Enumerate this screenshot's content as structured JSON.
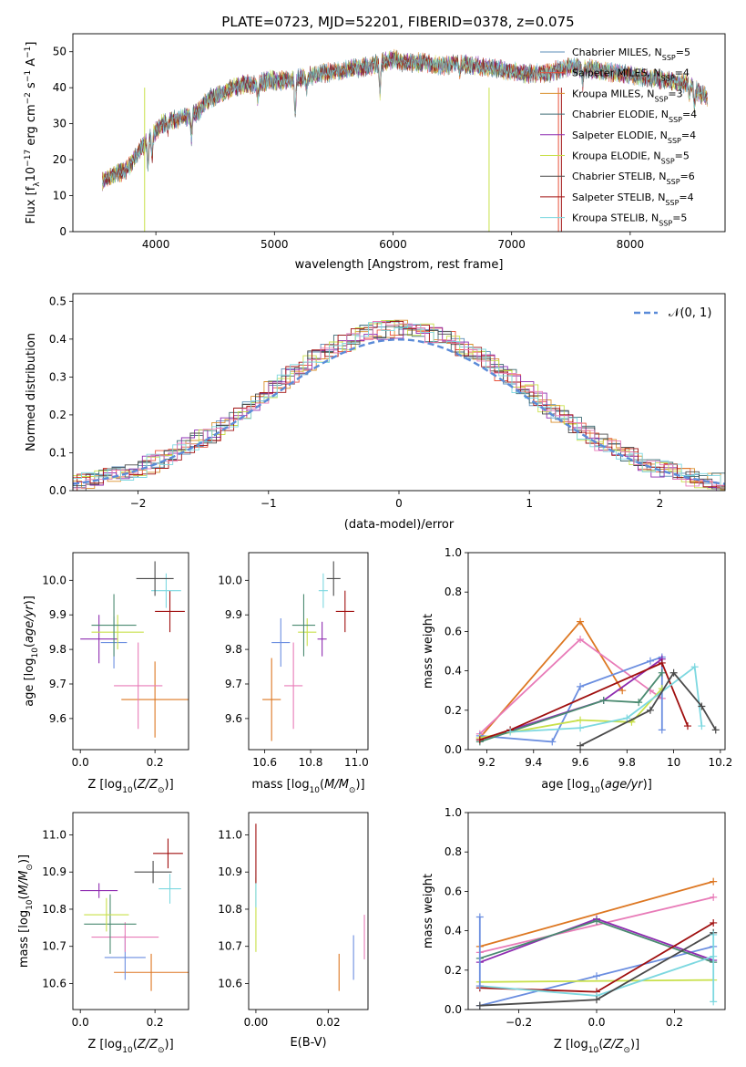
{
  "figure_title": "PLATE=0723, MJD=52201, FIBERID=0378, z=0.075",
  "colors": {
    "Chabrier MILES": "#5b8db8",
    "Salpeter MILES": "#e8513a",
    "Kroupa MILES": "#d98f2b",
    "Chabrier ELODIE": "#3d6b73",
    "Salpeter ELODIE": "#8e2bb0",
    "Kroupa ELODIE": "#c8e04a",
    "Chabrier STELIB": "#4a4a4a",
    "Salpeter STELIB": "#a01010",
    "Kroupa STELIB": "#7dd8e0"
  },
  "chart_data": [
    {
      "id": "spectrum",
      "type": "line",
      "xlabel": "wavelength [Angstrom, rest frame]",
      "ylabel": "Flux [f_λ10^{-17} erg cm^{-2} s^{-1} A^{-1}]",
      "xlim": [
        3300,
        8800
      ],
      "ylim": [
        0,
        55
      ],
      "xticks": [
        4000,
        5000,
        6000,
        7000,
        8000
      ],
      "yticks": [
        0,
        10,
        20,
        30,
        40,
        50
      ],
      "legend_position": "top-right",
      "legend": [
        {
          "prefix": "Chabrier MILES, N",
          "sub": "SSP",
          "suffix": "=5"
        },
        {
          "prefix": "Salpeter MILES, N",
          "sub": "SSP",
          "suffix": "=4"
        },
        {
          "prefix": "Kroupa MILES, N",
          "sub": "SSP",
          "suffix": "=3"
        },
        {
          "prefix": "Chabrier ELODIE, N",
          "sub": "SSP",
          "suffix": "=4"
        },
        {
          "prefix": "Salpeter ELODIE, N",
          "sub": "SSP",
          "suffix": "=4"
        },
        {
          "prefix": "Kroupa ELODIE, N",
          "sub": "SSP",
          "suffix": "=5"
        },
        {
          "prefix": "Chabrier STELIB, N",
          "sub": "SSP",
          "suffix": "=6"
        },
        {
          "prefix": "Salpeter STELIB, N",
          "sub": "SSP",
          "suffix": "=4"
        },
        {
          "prefix": "Kroupa STELIB, N",
          "sub": "SSP",
          "suffix": "=5"
        }
      ],
      "continuum": [
        [
          3550,
          14
        ],
        [
          3650,
          16
        ],
        [
          3750,
          17
        ],
        [
          3850,
          22
        ],
        [
          3950,
          26
        ],
        [
          4050,
          30
        ],
        [
          4150,
          31
        ],
        [
          4250,
          32
        ],
        [
          4350,
          33
        ],
        [
          4450,
          37
        ],
        [
          4550,
          38
        ],
        [
          4650,
          40
        ],
        [
          4750,
          41
        ],
        [
          4850,
          41
        ],
        [
          4950,
          42
        ],
        [
          5050,
          42
        ],
        [
          5150,
          42
        ],
        [
          5250,
          43
        ],
        [
          5400,
          44
        ],
        [
          5600,
          45
        ],
        [
          5800,
          46
        ],
        [
          5900,
          47
        ],
        [
          6000,
          48
        ],
        [
          6100,
          47
        ],
        [
          6250,
          47
        ],
        [
          6400,
          46
        ],
        [
          6550,
          47
        ],
        [
          6700,
          46
        ],
        [
          6900,
          45
        ],
        [
          7100,
          44
        ],
        [
          7300,
          44
        ],
        [
          7500,
          46
        ],
        [
          7700,
          45
        ],
        [
          7900,
          44
        ],
        [
          8100,
          43
        ],
        [
          8300,
          42
        ],
        [
          8500,
          41
        ],
        [
          8600,
          38
        ]
      ],
      "features": [
        [
          3933,
          -8
        ],
        [
          3968,
          -6
        ],
        [
          4100,
          -3
        ],
        [
          4300,
          -6
        ],
        [
          4861,
          -4
        ],
        [
          5175,
          -10
        ],
        [
          5270,
          -4
        ],
        [
          5890,
          -8
        ],
        [
          6563,
          -3
        ],
        [
          7600,
          -4
        ],
        [
          8500,
          -4
        ],
        [
          8542,
          -5
        ],
        [
          8662,
          -4
        ]
      ]
    },
    {
      "id": "residual_hist",
      "type": "histogram",
      "xlabel": "(data-model)/error",
      "ylabel": "Normed distribution",
      "xlim": [
        -2.5,
        2.5
      ],
      "ylim": [
        0,
        0.52
      ],
      "xticks": [
        -2,
        -1,
        0,
        1,
        2
      ],
      "yticks": [
        0.0,
        0.1,
        0.2,
        0.3,
        0.4,
        0.5
      ],
      "reference_curve": {
        "label": "𝒩(0, 1)",
        "mean": 0,
        "sigma": 1,
        "color": "#5b8bd8"
      },
      "legend_position": "top-right"
    },
    {
      "id": "age_vs_Z",
      "type": "scatter-errorbar",
      "xlabel": "Z [log10(Z/Z⊙)]",
      "ylabel": "age  [log10(age/yr)]",
      "xlim": [
        -0.02,
        0.29
      ],
      "ylim": [
        9.51,
        10.08
      ],
      "xticks": [
        0.0,
        0.2
      ],
      "xtick_labels": [
        "0.0",
        "0.2"
      ],
      "yticks": [
        9.6,
        9.7,
        9.8,
        9.9,
        10.0
      ],
      "points": [
        {
          "color": "#dd7722",
          "x": 0.2,
          "xerr": 0.09,
          "y": 9.655,
          "yerr": 0.11
        },
        {
          "color": "#e87bb8",
          "x": 0.155,
          "xerr": 0.065,
          "y": 9.695,
          "yerr": 0.125
        },
        {
          "color": "#6b8ee0",
          "x": 0.09,
          "xerr": 0.035,
          "y": 9.82,
          "yerr": 0.075
        },
        {
          "color": "#8e2bb0",
          "x": 0.05,
          "xerr": 0.05,
          "y": 9.83,
          "yerr": 0.07
        },
        {
          "color": "#c8e04a",
          "x": 0.1,
          "xerr": 0.07,
          "y": 9.85,
          "yerr": 0.05
        },
        {
          "color": "#4a8a70",
          "x": 0.09,
          "xerr": 0.06,
          "y": 9.87,
          "yerr": 0.09
        },
        {
          "color": "#a01010",
          "x": 0.24,
          "xerr": 0.04,
          "y": 9.91,
          "yerr": 0.06
        },
        {
          "color": "#7dd8e0",
          "x": 0.23,
          "xerr": 0.04,
          "y": 9.97,
          "yerr": 0.05
        },
        {
          "color": "#4a4a4a",
          "x": 0.2,
          "xerr": 0.05,
          "y": 10.005,
          "yerr": 0.05
        }
      ]
    },
    {
      "id": "age_vs_mass",
      "type": "scatter-errorbar",
      "xlabel": "mass [log10(M/M⊙)]",
      "xlim": [
        10.53,
        11.05
      ],
      "ylim": [
        9.51,
        10.08
      ],
      "xticks": [
        10.6,
        10.8,
        11.0
      ],
      "xtick_labels": [
        "10.6",
        "10.8",
        "11.0"
      ],
      "yticks": [
        9.6,
        9.7,
        9.8,
        9.9,
        10.0
      ],
      "points": [
        {
          "color": "#dd7722",
          "x": 10.63,
          "xerr": 0.04,
          "y": 9.655,
          "yerr": 0.12
        },
        {
          "color": "#e87bb8",
          "x": 10.725,
          "xerr": 0.04,
          "y": 9.695,
          "yerr": 0.125
        },
        {
          "color": "#6b8ee0",
          "x": 10.67,
          "xerr": 0.04,
          "y": 9.82,
          "yerr": 0.07
        },
        {
          "color": "#8e2bb0",
          "x": 10.85,
          "xerr": 0.02,
          "y": 9.83,
          "yerr": 0.05
        },
        {
          "color": "#c8e04a",
          "x": 10.785,
          "xerr": 0.04,
          "y": 9.85,
          "yerr": 0.04
        },
        {
          "color": "#4a8a70",
          "x": 10.77,
          "xerr": 0.05,
          "y": 9.87,
          "yerr": 0.09
        },
        {
          "color": "#a01010",
          "x": 10.95,
          "xerr": 0.04,
          "y": 9.91,
          "yerr": 0.06
        },
        {
          "color": "#7dd8e0",
          "x": 10.855,
          "xerr": 0.02,
          "y": 9.97,
          "yerr": 0.05
        },
        {
          "color": "#4a4a4a",
          "x": 10.9,
          "xerr": 0.03,
          "y": 10.005,
          "yerr": 0.05
        }
      ]
    },
    {
      "id": "weight_vs_age",
      "type": "line",
      "xlabel": "age  [log10(age/yr)]",
      "ylabel": "mass weight",
      "xlim": [
        9.12,
        10.22
      ],
      "ylim": [
        0,
        1.0
      ],
      "xticks": [
        9.2,
        9.4,
        9.6,
        9.8,
        10.0,
        10.2
      ],
      "yticks": [
        0.0,
        0.2,
        0.4,
        0.6,
        0.8,
        1.0
      ],
      "series": [
        {
          "color": "#dd7722",
          "x": [
            9.17,
            9.6,
            9.78
          ],
          "y": [
            0.06,
            0.65,
            0.3
          ]
        },
        {
          "color": "#e87bb8",
          "x": [
            9.17,
            9.6,
            9.9,
            9.95
          ],
          "y": [
            0.08,
            0.56,
            0.3,
            0.26
          ]
        },
        {
          "color": "#6b8ee0",
          "x": [
            9.17,
            9.48,
            9.6,
            9.9,
            9.95,
            9.95
          ],
          "y": [
            0.07,
            0.04,
            0.32,
            0.45,
            0.47,
            0.1
          ]
        },
        {
          "color": "#8e2bb0",
          "x": [
            9.17,
            9.7,
            9.95
          ],
          "y": [
            0.05,
            0.25,
            0.46
          ]
        },
        {
          "color": "#c8e04a",
          "x": [
            9.17,
            9.6,
            9.82,
            9.95
          ],
          "y": [
            0.06,
            0.15,
            0.14,
            0.31
          ]
        },
        {
          "color": "#4a8a70",
          "x": [
            9.17,
            9.7,
            9.85,
            9.95
          ],
          "y": [
            0.04,
            0.25,
            0.24,
            0.39
          ]
        },
        {
          "color": "#a01010",
          "x": [
            9.17,
            9.3,
            9.95,
            10.06
          ],
          "y": [
            0.05,
            0.1,
            0.44,
            0.12
          ]
        },
        {
          "color": "#7dd8e0",
          "x": [
            9.3,
            9.6,
            9.8,
            10.09,
            10.12
          ],
          "y": [
            0.09,
            0.11,
            0.16,
            0.42,
            0.12
          ]
        },
        {
          "color": "#4a4a4a",
          "x": [
            9.6,
            9.9,
            10.0,
            10.12,
            10.18
          ],
          "y": [
            0.02,
            0.2,
            0.39,
            0.22,
            0.1
          ]
        }
      ]
    },
    {
      "id": "mass_vs_Z",
      "type": "scatter-errorbar",
      "xlabel": "Z [log10(Z/Z⊙)]",
      "ylabel": "mass [log10(M/M⊙)]",
      "xlim": [
        -0.02,
        0.29
      ],
      "ylim": [
        10.53,
        11.06
      ],
      "xticks": [
        0.0,
        0.2
      ],
      "xtick_labels": [
        "0.0",
        "0.2"
      ],
      "yticks": [
        10.6,
        10.7,
        10.8,
        10.9,
        11.0
      ],
      "points": [
        {
          "color": "#dd7722",
          "x": 0.19,
          "xerr": 0.1,
          "y": 10.63,
          "yerr": 0.05
        },
        {
          "color": "#6b8ee0",
          "x": 0.12,
          "xerr": 0.055,
          "y": 10.67,
          "yerr": 0.06
        },
        {
          "color": "#e87bb8",
          "x": 0.12,
          "xerr": 0.09,
          "y": 10.725,
          "yerr": 0.04
        },
        {
          "color": "#4a8a70",
          "x": 0.08,
          "xerr": 0.07,
          "y": 10.76,
          "yerr": 0.08
        },
        {
          "color": "#c8e04a",
          "x": 0.07,
          "xerr": 0.06,
          "y": 10.785,
          "yerr": 0.045
        },
        {
          "color": "#8e2bb0",
          "x": 0.05,
          "xerr": 0.05,
          "y": 10.85,
          "yerr": 0.02
        },
        {
          "color": "#7dd8e0",
          "x": 0.24,
          "xerr": 0.03,
          "y": 10.855,
          "yerr": 0.04
        },
        {
          "color": "#4a4a4a",
          "x": 0.195,
          "xerr": 0.05,
          "y": 10.9,
          "yerr": 0.03
        },
        {
          "color": "#a01010",
          "x": 0.235,
          "xerr": 0.04,
          "y": 10.95,
          "yerr": 0.04
        }
      ]
    },
    {
      "id": "mass_vs_EBV",
      "type": "scatter-errorbar",
      "xlabel": "E(B-V)",
      "xlim": [
        -0.002,
        0.031
      ],
      "ylim": [
        10.53,
        11.06
      ],
      "xticks": [
        0.0,
        0.02
      ],
      "xtick_labels": [
        "0.00",
        "0.02"
      ],
      "yticks": [
        10.6,
        10.7,
        10.8,
        10.9,
        11.0
      ],
      "points": [
        {
          "color": "#dd7722",
          "x": 0.023,
          "xerr": 0,
          "y": 10.63,
          "yerr": 0.05
        },
        {
          "color": "#6b8ee0",
          "x": 0.027,
          "xerr": 0,
          "y": 10.67,
          "yerr": 0.06
        },
        {
          "color": "#e87bb8",
          "x": 0.03,
          "xerr": 0,
          "y": 10.725,
          "yerr": 0.06
        },
        {
          "color": "#c8e04a",
          "x": 0.0,
          "xerr": 0,
          "y": 10.785,
          "yerr": 0.1
        },
        {
          "color": "#7dd8e0",
          "x": 0.0,
          "xerr": 0,
          "y": 10.855,
          "yerr": 0.05
        },
        {
          "color": "#a01010",
          "x": 0.0,
          "xerr": 0,
          "y": 10.95,
          "yerr": 0.08
        }
      ]
    },
    {
      "id": "weight_vs_Z",
      "type": "line",
      "xlabel": "Z [log10(Z/Z⊙)]",
      "ylabel": "mass weight",
      "xlim": [
        -0.33,
        0.33
      ],
      "ylim": [
        0,
        1.0
      ],
      "xticks": [
        -0.2,
        0.0,
        0.2
      ],
      "xtick_labels": [
        "−0.2",
        "0.0",
        "0.2"
      ],
      "yticks": [
        0.0,
        0.2,
        0.4,
        0.6,
        0.8,
        1.0
      ],
      "series": [
        {
          "color": "#dd7722",
          "x": [
            -0.3,
            0.3
          ],
          "y": [
            0.32,
            0.65
          ]
        },
        {
          "color": "#e87bb8",
          "x": [
            -0.3,
            0.3
          ],
          "y": [
            0.29,
            0.57
          ]
        },
        {
          "color": "#6b8ee0",
          "x": [
            -0.3,
            0.0,
            0.3
          ],
          "y": [
            0.02,
            0.17,
            0.32
          ]
        },
        {
          "color": "#8e2bb0",
          "x": [
            -0.3,
            0.0,
            0.3
          ],
          "y": [
            0.24,
            0.46,
            0.25
          ]
        },
        {
          "color": "#c8e04a",
          "x": [
            -0.3,
            0.3
          ],
          "y": [
            0.14,
            0.15
          ]
        },
        {
          "color": "#4a8a70",
          "x": [
            -0.3,
            0.0,
            0.3
          ],
          "y": [
            0.26,
            0.45,
            0.24
          ]
        },
        {
          "color": "#a01010",
          "x": [
            -0.3,
            0.0,
            0.3
          ],
          "y": [
            0.11,
            0.09,
            0.44
          ]
        },
        {
          "color": "#7dd8e0",
          "x": [
            -0.3,
            0.0,
            0.3
          ],
          "y": [
            0.12,
            0.07,
            0.27
          ]
        },
        {
          "color": "#4a4a4a",
          "x": [
            -0.3,
            0.0,
            0.3
          ],
          "y": [
            0.02,
            0.05,
            0.39
          ]
        },
        {
          "color": "#6b8ee0",
          "x": [
            -0.3,
            -0.3
          ],
          "y": [
            0.47,
            0.12
          ]
        },
        {
          "color": "#7dd8e0",
          "x": [
            0.3,
            0.3
          ],
          "y": [
            0.04,
            0.38
          ]
        }
      ]
    }
  ]
}
